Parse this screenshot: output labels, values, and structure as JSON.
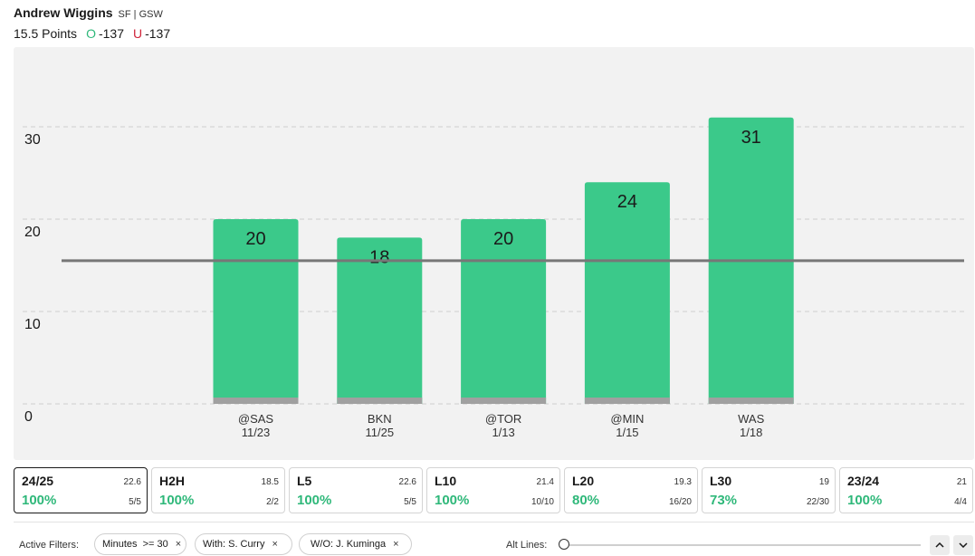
{
  "player": {
    "name": "Andrew Wiggins",
    "team": "SF | GSW",
    "line": "15.5 Points",
    "over_marker": "O",
    "over_odds": "-137",
    "under_marker": "U",
    "under_odds": "-137"
  },
  "colors": {
    "bar": "#3bc98a",
    "bar_base": "#a0a0a0",
    "line": "#777777",
    "over": "#2fb87a",
    "under": "#d0243a"
  },
  "chart_data": {
    "type": "bar",
    "categories": [
      "@SAS",
      "BKN",
      "@TOR",
      "@MIN",
      "WAS"
    ],
    "dates": [
      "11/23",
      "11/25",
      "1/13",
      "1/15",
      "1/18"
    ],
    "values": [
      20,
      18,
      20,
      24,
      31
    ],
    "ylim": [
      0,
      40
    ],
    "yticks": [
      0,
      10,
      20,
      30
    ],
    "reference_line": 15.5,
    "grid": true
  },
  "cards": [
    {
      "label": "24/25",
      "avg": "22.6",
      "pct": "100%",
      "frac": "5/5",
      "active": true
    },
    {
      "label": "H2H",
      "avg": "18.5",
      "pct": "100%",
      "frac": "2/2"
    },
    {
      "label": "L5",
      "avg": "22.6",
      "pct": "100%",
      "frac": "5/5"
    },
    {
      "label": "L10",
      "avg": "21.4",
      "pct": "100%",
      "frac": "10/10"
    },
    {
      "label": "L20",
      "avg": "19.3",
      "pct": "80%",
      "frac": "16/20"
    },
    {
      "label": "L30",
      "avg": "19",
      "pct": "73%",
      "frac": "22/30"
    },
    {
      "label": "23/24",
      "avg": "21",
      "pct": "100%",
      "frac": "4/4"
    }
  ],
  "filters": {
    "label": "Active Filters:",
    "chips": [
      {
        "text": "Minutes  >= 30",
        "close": "×"
      },
      {
        "text": "With: S. Curry",
        "close": "×"
      },
      {
        "text": "W/O: J. Kuminga",
        "close": "×"
      }
    ],
    "alt_lines_label": "Alt Lines:",
    "up_icon": "chevron-up-icon",
    "down_icon": "chevron-down-icon"
  }
}
